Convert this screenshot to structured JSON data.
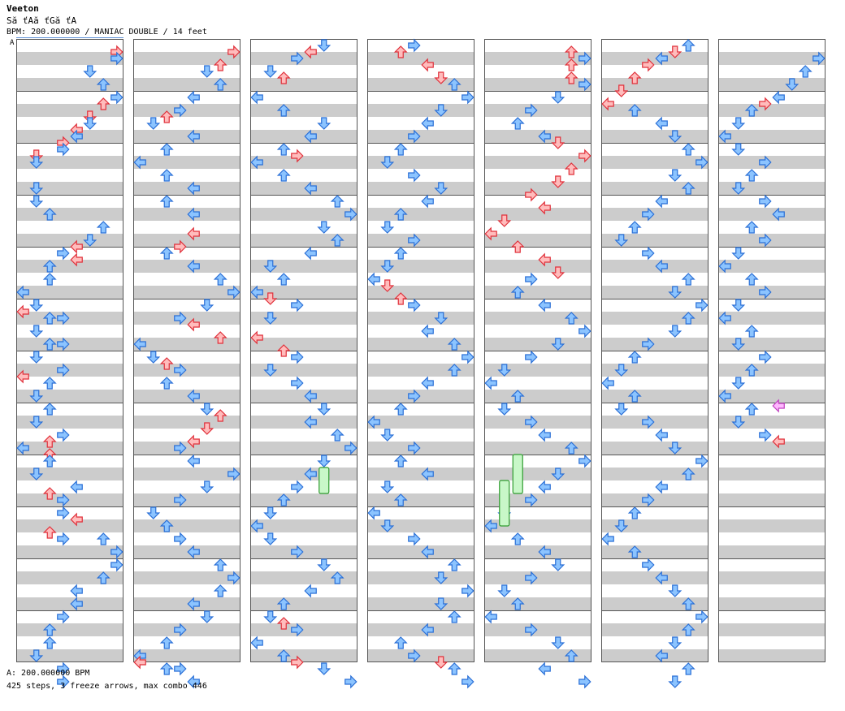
{
  "header": {
    "artist": "Veeton",
    "title": "Să ťAă ťGă ťA",
    "bpm_line": "BPM: 200.000000 / MANIAC DOUBLE / 14 feet"
  },
  "segment_label": "A",
  "footer": {
    "bpm": "A: 200.000000 BPM",
    "stats": "425 steps, 3 freeze arrows, max combo 446"
  },
  "colors": {
    "band_gray": "#cccccc",
    "red_arrow_fill": "#ffbcbc",
    "red_arrow_stroke": "#e0303a",
    "blue_arrow_fill": "#8cc4ff",
    "blue_arrow_stroke": "#2a6fd6",
    "freeze_fill": "#c8f7c8",
    "freeze_stroke": "#2f9b2f",
    "shock_fill": "#ffb8ff",
    "shock_stroke": "#c040c0"
  },
  "chart_data": {
    "type": "step-chart",
    "mode": "MANIAC DOUBLE",
    "feet": 14,
    "bpm": 200,
    "lanes": [
      "L1",
      "D1",
      "U1",
      "R1",
      "L2",
      "D2",
      "U2",
      "R2"
    ],
    "columns": 7,
    "measures_per_column": 12,
    "rows_per_measure": 8,
    "steps": 425,
    "freeze_arrows": 3,
    "max_combo": 446,
    "notes": [
      [
        [
          7,
          1
        ],
        [
          7,
          2
        ],
        [
          5,
          4
        ],
        [
          6,
          6
        ],
        [
          7,
          8
        ],
        [
          6,
          9
        ],
        [
          5,
          11
        ],
        [
          5,
          12
        ],
        [
          4,
          13
        ],
        [
          4,
          14
        ],
        [
          3,
          15
        ],
        [
          3,
          16
        ],
        [
          1,
          17
        ],
        [
          1,
          18
        ],
        [
          1,
          22
        ],
        [
          1,
          24
        ],
        [
          2,
          26
        ],
        [
          6,
          28
        ],
        [
          5,
          30
        ],
        [
          4,
          31
        ],
        [
          3,
          32
        ],
        [
          4,
          33
        ],
        [
          2,
          34
        ],
        [
          2,
          36
        ],
        [
          0,
          38
        ],
        [
          1,
          40
        ],
        [
          0,
          41
        ],
        [
          2,
          42
        ],
        [
          3,
          42
        ],
        [
          1,
          44
        ],
        [
          2,
          46
        ],
        [
          3,
          46
        ],
        [
          1,
          48
        ],
        [
          3,
          50
        ],
        [
          0,
          51
        ],
        [
          2,
          52
        ],
        [
          1,
          54
        ],
        [
          2,
          56
        ],
        [
          1,
          58
        ],
        [
          3,
          60
        ],
        [
          2,
          61
        ],
        [
          0,
          62
        ],
        [
          2,
          63
        ],
        [
          2,
          64
        ],
        [
          1,
          66
        ],
        [
          4,
          68
        ],
        [
          2,
          69
        ],
        [
          3,
          70
        ],
        [
          3,
          72
        ],
        [
          4,
          73
        ],
        [
          2,
          75
        ],
        [
          3,
          76
        ],
        [
          6,
          76
        ],
        [
          7,
          78
        ],
        [
          7,
          80
        ],
        [
          6,
          82
        ],
        [
          4,
          84
        ],
        [
          4,
          86
        ],
        [
          3,
          88
        ],
        [
          2,
          90
        ],
        [
          2,
          92
        ],
        [
          1,
          94
        ],
        [
          3,
          96
        ],
        [
          3,
          98
        ]
      ],
      [
        [
          7,
          1
        ],
        [
          6,
          3
        ],
        [
          5,
          4
        ],
        [
          6,
          6
        ],
        [
          4,
          8
        ],
        [
          3,
          10
        ],
        [
          2,
          11
        ],
        [
          1,
          12
        ],
        [
          4,
          14
        ],
        [
          2,
          16
        ],
        [
          0,
          18
        ],
        [
          2,
          20
        ],
        [
          4,
          22
        ],
        [
          2,
          24
        ],
        [
          4,
          26
        ],
        [
          4,
          29
        ],
        [
          3,
          31
        ],
        [
          2,
          32
        ],
        [
          4,
          34
        ],
        [
          6,
          36
        ],
        [
          7,
          38
        ],
        [
          5,
          40
        ],
        [
          3,
          42
        ],
        [
          4,
          43
        ],
        [
          6,
          45
        ],
        [
          0,
          46
        ],
        [
          1,
          48
        ],
        [
          2,
          49
        ],
        [
          3,
          50
        ],
        [
          2,
          52
        ],
        [
          4,
          54
        ],
        [
          5,
          56
        ],
        [
          6,
          57
        ],
        [
          5,
          59
        ],
        [
          4,
          61
        ],
        [
          3,
          62
        ],
        [
          4,
          64
        ],
        [
          7,
          66
        ],
        [
          5,
          68
        ],
        [
          3,
          70
        ],
        [
          1,
          72
        ],
        [
          2,
          74
        ],
        [
          3,
          76
        ],
        [
          4,
          78
        ],
        [
          6,
          80
        ],
        [
          7,
          82
        ],
        [
          6,
          84
        ],
        [
          4,
          86
        ],
        [
          5,
          88
        ],
        [
          3,
          90
        ],
        [
          2,
          92
        ],
        [
          0,
          94
        ],
        [
          0,
          95
        ],
        [
          2,
          96
        ],
        [
          3,
          96
        ],
        [
          4,
          98
        ]
      ],
      [
        [
          5,
          0
        ],
        [
          4,
          1
        ],
        [
          3,
          2
        ],
        [
          1,
          4
        ],
        [
          2,
          5
        ],
        [
          0,
          8
        ],
        [
          2,
          10
        ],
        [
          5,
          12
        ],
        [
          4,
          14
        ],
        [
          2,
          16
        ],
        [
          3,
          17
        ],
        [
          0,
          18
        ],
        [
          2,
          20
        ],
        [
          4,
          22
        ],
        [
          6,
          24
        ],
        [
          7,
          26
        ],
        [
          5,
          28
        ],
        [
          6,
          30
        ],
        [
          4,
          32
        ],
        [
          1,
          34
        ],
        [
          2,
          36
        ],
        [
          0,
          38
        ],
        [
          1,
          39
        ],
        [
          3,
          40
        ],
        [
          1,
          42
        ],
        [
          0,
          45
        ],
        [
          2,
          47
        ],
        [
          3,
          48
        ],
        [
          1,
          50
        ],
        [
          3,
          52
        ],
        [
          4,
          54
        ],
        [
          5,
          56
        ],
        [
          4,
          58
        ],
        [
          6,
          60
        ],
        [
          7,
          62
        ],
        [
          5,
          64
        ],
        [
          4,
          66
        ],
        [
          3,
          68
        ],
        [
          2,
          70
        ],
        [
          1,
          72
        ],
        [
          0,
          74
        ],
        [
          1,
          76
        ],
        [
          3,
          78
        ],
        [
          5,
          80
        ],
        [
          6,
          82
        ],
        [
          4,
          84
        ],
        [
          2,
          86
        ],
        [
          1,
          88
        ],
        [
          2,
          89
        ],
        [
          3,
          90
        ],
        [
          0,
          92
        ],
        [
          2,
          94
        ],
        [
          3,
          95
        ],
        [
          5,
          96
        ],
        [
          7,
          98
        ]
      ],
      [
        [
          3,
          0
        ],
        [
          2,
          1
        ],
        [
          4,
          3
        ],
        [
          5,
          5
        ],
        [
          6,
          6
        ],
        [
          7,
          8
        ],
        [
          5,
          10
        ],
        [
          4,
          12
        ],
        [
          3,
          14
        ],
        [
          2,
          16
        ],
        [
          1,
          18
        ],
        [
          3,
          20
        ],
        [
          5,
          22
        ],
        [
          4,
          24
        ],
        [
          2,
          26
        ],
        [
          1,
          28
        ],
        [
          3,
          30
        ],
        [
          2,
          32
        ],
        [
          1,
          34
        ],
        [
          0,
          36
        ],
        [
          1,
          37
        ],
        [
          2,
          39
        ],
        [
          3,
          40
        ],
        [
          5,
          42
        ],
        [
          4,
          44
        ],
        [
          6,
          46
        ],
        [
          7,
          48
        ],
        [
          6,
          50
        ],
        [
          4,
          52
        ],
        [
          3,
          54
        ],
        [
          2,
          56
        ],
        [
          0,
          58
        ],
        [
          1,
          60
        ],
        [
          3,
          62
        ],
        [
          2,
          64
        ],
        [
          4,
          66
        ],
        [
          1,
          68
        ],
        [
          2,
          70
        ],
        [
          0,
          72
        ],
        [
          1,
          74
        ],
        [
          3,
          76
        ],
        [
          4,
          78
        ],
        [
          6,
          80
        ],
        [
          5,
          82
        ],
        [
          7,
          84
        ],
        [
          5,
          86
        ],
        [
          6,
          88
        ],
        [
          4,
          90
        ],
        [
          2,
          92
        ],
        [
          3,
          94
        ],
        [
          5,
          95
        ],
        [
          6,
          96
        ],
        [
          7,
          98
        ]
      ],
      [
        [
          6,
          1
        ],
        [
          7,
          2
        ],
        [
          6,
          3
        ],
        [
          6,
          5
        ],
        [
          7,
          6
        ],
        [
          5,
          8
        ],
        [
          3,
          10
        ],
        [
          2,
          12
        ],
        [
          4,
          14
        ],
        [
          5,
          15
        ],
        [
          7,
          17
        ],
        [
          6,
          19
        ],
        [
          5,
          21
        ],
        [
          3,
          23
        ],
        [
          4,
          25
        ],
        [
          1,
          27
        ],
        [
          0,
          29
        ],
        [
          2,
          31
        ],
        [
          4,
          33
        ],
        [
          5,
          35
        ],
        [
          3,
          36
        ],
        [
          2,
          38
        ],
        [
          4,
          40
        ],
        [
          6,
          42
        ],
        [
          7,
          44
        ],
        [
          5,
          46
        ],
        [
          3,
          48
        ],
        [
          1,
          50
        ],
        [
          0,
          52
        ],
        [
          2,
          54
        ],
        [
          1,
          56
        ],
        [
          3,
          58
        ],
        [
          4,
          60
        ],
        [
          6,
          62
        ],
        [
          7,
          64
        ],
        [
          5,
          66
        ],
        [
          4,
          68
        ],
        [
          3,
          70
        ],
        [
          1,
          72
        ],
        [
          0,
          74
        ],
        [
          2,
          76
        ],
        [
          4,
          78
        ],
        [
          5,
          80
        ],
        [
          3,
          82
        ],
        [
          1,
          84
        ],
        [
          2,
          86
        ],
        [
          0,
          88
        ],
        [
          3,
          90
        ],
        [
          5,
          92
        ],
        [
          6,
          94
        ],
        [
          4,
          96
        ],
        [
          7,
          98
        ]
      ],
      [
        [
          6,
          0
        ],
        [
          5,
          1
        ],
        [
          4,
          2
        ],
        [
          3,
          3
        ],
        [
          2,
          5
        ],
        [
          1,
          7
        ],
        [
          0,
          9
        ],
        [
          2,
          10
        ],
        [
          4,
          12
        ],
        [
          5,
          14
        ],
        [
          6,
          16
        ],
        [
          7,
          18
        ],
        [
          5,
          20
        ],
        [
          6,
          22
        ],
        [
          4,
          24
        ],
        [
          3,
          26
        ],
        [
          2,
          28
        ],
        [
          1,
          30
        ],
        [
          3,
          32
        ],
        [
          4,
          34
        ],
        [
          6,
          36
        ],
        [
          5,
          38
        ],
        [
          7,
          40
        ],
        [
          6,
          42
        ],
        [
          5,
          44
        ],
        [
          3,
          46
        ],
        [
          2,
          48
        ],
        [
          1,
          50
        ],
        [
          0,
          52
        ],
        [
          2,
          54
        ],
        [
          1,
          56
        ],
        [
          3,
          58
        ],
        [
          4,
          60
        ],
        [
          5,
          62
        ],
        [
          7,
          64
        ],
        [
          6,
          66
        ],
        [
          4,
          68
        ],
        [
          3,
          70
        ],
        [
          2,
          72
        ],
        [
          1,
          74
        ],
        [
          0,
          76
        ],
        [
          2,
          78
        ],
        [
          3,
          80
        ],
        [
          4,
          82
        ],
        [
          5,
          84
        ],
        [
          6,
          86
        ],
        [
          7,
          88
        ],
        [
          6,
          90
        ],
        [
          5,
          92
        ],
        [
          4,
          94
        ],
        [
          6,
          96
        ],
        [
          5,
          98
        ]
      ],
      [
        [
          7,
          2
        ],
        [
          6,
          4
        ],
        [
          5,
          6
        ],
        [
          4,
          8
        ],
        [
          3,
          9
        ],
        [
          2,
          10
        ],
        [
          1,
          12
        ],
        [
          0,
          14
        ],
        [
          1,
          16
        ],
        [
          3,
          18
        ],
        [
          2,
          20
        ],
        [
          1,
          22
        ],
        [
          3,
          24
        ],
        [
          4,
          26
        ],
        [
          2,
          28
        ],
        [
          3,
          30
        ],
        [
          1,
          32
        ],
        [
          0,
          34
        ],
        [
          2,
          36
        ],
        [
          3,
          38
        ],
        [
          1,
          40
        ],
        [
          0,
          42
        ],
        [
          2,
          44
        ],
        [
          1,
          46
        ],
        [
          3,
          48
        ],
        [
          2,
          50
        ],
        [
          1,
          52
        ],
        [
          0,
          54
        ],
        [
          2,
          56
        ],
        [
          1,
          58
        ],
        [
          3,
          60
        ],
        [
          4,
          61
        ]
      ]
    ]
  }
}
